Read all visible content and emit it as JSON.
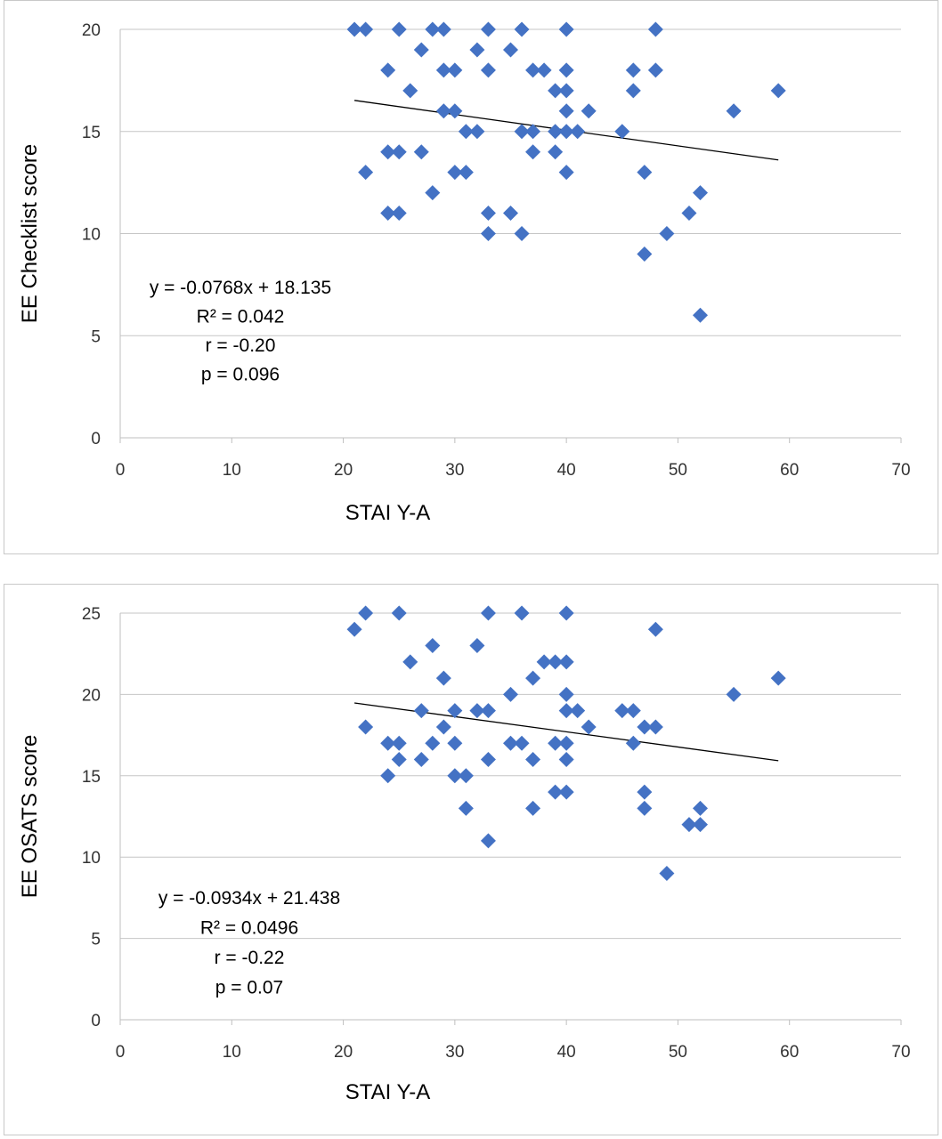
{
  "chart_data": [
    {
      "type": "scatter",
      "title": "",
      "xlabel": "STAI Y-A",
      "ylabel": "EE Checklist score",
      "xlim": [
        0,
        70
      ],
      "ylim": [
        0,
        20
      ],
      "x_ticks": [
        0,
        10,
        20,
        30,
        40,
        50,
        60,
        70
      ],
      "y_ticks": [
        0,
        5,
        10,
        15,
        20
      ],
      "grid": "horizontal",
      "legend": "none",
      "marker_color": "#4472C4",
      "marker_shape": "diamond",
      "trendline": {
        "slope": -0.0768,
        "intercept": 18.135,
        "x_range": [
          21,
          59
        ]
      },
      "annotations": [
        "y = -0.0768x + 18.135",
        "R² = 0.042",
        "r = -0.20",
        "p = 0.096"
      ],
      "points": [
        [
          21,
          20
        ],
        [
          22,
          20
        ],
        [
          25,
          20
        ],
        [
          28,
          20
        ],
        [
          29,
          20
        ],
        [
          33,
          20
        ],
        [
          36,
          20
        ],
        [
          40,
          20
        ],
        [
          48,
          20
        ],
        [
          32,
          19
        ],
        [
          35,
          19
        ],
        [
          27,
          19
        ],
        [
          24,
          18
        ],
        [
          29,
          18
        ],
        [
          30,
          18
        ],
        [
          33,
          18
        ],
        [
          37,
          18
        ],
        [
          38,
          18
        ],
        [
          40,
          18
        ],
        [
          46,
          18
        ],
        [
          48,
          18
        ],
        [
          26,
          17
        ],
        [
          39,
          17
        ],
        [
          40,
          17
        ],
        [
          46,
          17
        ],
        [
          59,
          17
        ],
        [
          29,
          16
        ],
        [
          30,
          16
        ],
        [
          40,
          16
        ],
        [
          42,
          16
        ],
        [
          55,
          16
        ],
        [
          31,
          15
        ],
        [
          32,
          15
        ],
        [
          36,
          15
        ],
        [
          37,
          15
        ],
        [
          39,
          15
        ],
        [
          40,
          15
        ],
        [
          41,
          15
        ],
        [
          45,
          15
        ],
        [
          24,
          14
        ],
        [
          25,
          14
        ],
        [
          27,
          14
        ],
        [
          37,
          14
        ],
        [
          39,
          14
        ],
        [
          22,
          13
        ],
        [
          30,
          13
        ],
        [
          31,
          13
        ],
        [
          40,
          13
        ],
        [
          47,
          13
        ],
        [
          28,
          12
        ],
        [
          52,
          12
        ],
        [
          24,
          11
        ],
        [
          25,
          11
        ],
        [
          33,
          11
        ],
        [
          35,
          11
        ],
        [
          51,
          11
        ],
        [
          33,
          10
        ],
        [
          36,
          10
        ],
        [
          49,
          10
        ],
        [
          47,
          9
        ],
        [
          52,
          6
        ]
      ]
    },
    {
      "type": "scatter",
      "title": "",
      "xlabel": "STAI Y-A",
      "ylabel": "EE OSATS score",
      "xlim": [
        0,
        70
      ],
      "ylim": [
        0,
        25
      ],
      "x_ticks": [
        0,
        10,
        20,
        30,
        40,
        50,
        60,
        70
      ],
      "y_ticks": [
        0,
        5,
        10,
        15,
        20,
        25
      ],
      "grid": "horizontal",
      "legend": "none",
      "marker_color": "#4472C4",
      "marker_shape": "diamond",
      "trendline": {
        "slope": -0.0934,
        "intercept": 21.438,
        "x_range": [
          21,
          59
        ]
      },
      "annotations": [
        "y = -0.0934x + 21.438",
        "R² = 0.0496",
        "r = -0.22",
        "p = 0.07"
      ],
      "points": [
        [
          22,
          25
        ],
        [
          25,
          25
        ],
        [
          33,
          25
        ],
        [
          36,
          25
        ],
        [
          40,
          25
        ],
        [
          21,
          24
        ],
        [
          48,
          24
        ],
        [
          28,
          23
        ],
        [
          32,
          23
        ],
        [
          26,
          22
        ],
        [
          38,
          22
        ],
        [
          39,
          22
        ],
        [
          40,
          22
        ],
        [
          29,
          21
        ],
        [
          37,
          21
        ],
        [
          59,
          21
        ],
        [
          35,
          20
        ],
        [
          40,
          20
        ],
        [
          55,
          20
        ],
        [
          27,
          19
        ],
        [
          30,
          19
        ],
        [
          32,
          19
        ],
        [
          33,
          19
        ],
        [
          40,
          19
        ],
        [
          41,
          19
        ],
        [
          45,
          19
        ],
        [
          46,
          19
        ],
        [
          22,
          18
        ],
        [
          29,
          18
        ],
        [
          42,
          18
        ],
        [
          47,
          18
        ],
        [
          48,
          18
        ],
        [
          24,
          17
        ],
        [
          25,
          17
        ],
        [
          28,
          17
        ],
        [
          30,
          17
        ],
        [
          35,
          17
        ],
        [
          36,
          17
        ],
        [
          39,
          17
        ],
        [
          40,
          17
        ],
        [
          46,
          17
        ],
        [
          25,
          16
        ],
        [
          27,
          16
        ],
        [
          33,
          16
        ],
        [
          37,
          16
        ],
        [
          40,
          16
        ],
        [
          24,
          15
        ],
        [
          30,
          15
        ],
        [
          31,
          15
        ],
        [
          39,
          14
        ],
        [
          40,
          14
        ],
        [
          47,
          14
        ],
        [
          31,
          13
        ],
        [
          37,
          13
        ],
        [
          47,
          13
        ],
        [
          52,
          13
        ],
        [
          51,
          12
        ],
        [
          52,
          12
        ],
        [
          33,
          11
        ],
        [
          49,
          9
        ]
      ]
    }
  ]
}
